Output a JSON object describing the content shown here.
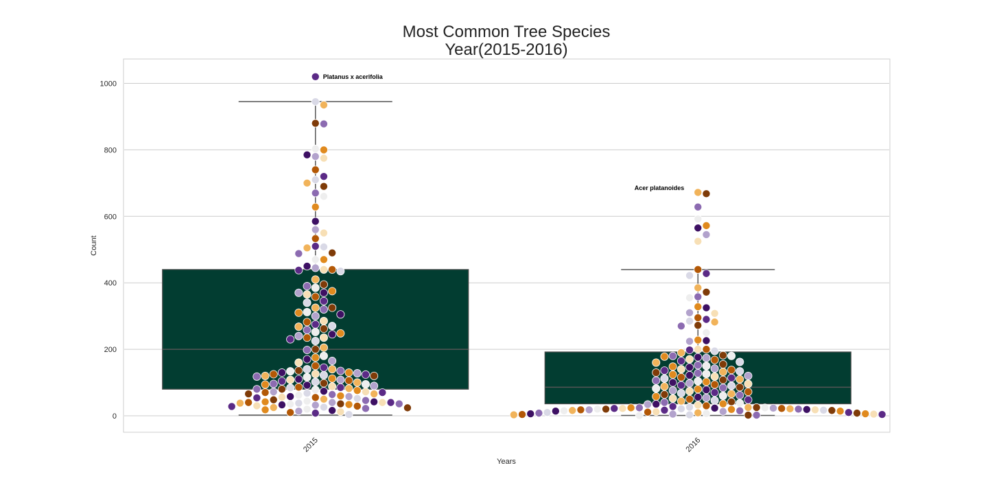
{
  "chart_data": {
    "type": "box_swarm",
    "title_line1": "Most Common Tree Species",
    "title_line2": "Year(2015-2016)",
    "xlabel": "Years",
    "ylabel": "Count",
    "ylim": [
      -50,
      1075
    ],
    "yticks": [
      0,
      200,
      400,
      600,
      800,
      1000
    ],
    "grid": true,
    "categories": [
      "2015",
      "2016"
    ],
    "box_color": "#023d31",
    "box_stats": [
      {
        "category": "2015",
        "q1": 80,
        "median": 200,
        "q3": 440,
        "whisker_low": 2,
        "whisker_high": 945
      },
      {
        "category": "2016",
        "q1": 36,
        "median": 86,
        "q3": 192,
        "whisker_low": 1,
        "whisker_high": 440
      }
    ],
    "point_colors": [
      "#5b2a86",
      "#8c6bb1",
      "#b2a2cc",
      "#d9d9e6",
      "#eeeeee",
      "#f7dfb5",
      "#f1b35a",
      "#e08a1e",
      "#b35806",
      "#7f3b08",
      "#3d1063"
    ],
    "series": [
      {
        "category": "2015",
        "values": [
          1020,
          945,
          935,
          880,
          878,
          803,
          800,
          785,
          780,
          775,
          740,
          720,
          710,
          700,
          690,
          670,
          660,
          628,
          585,
          560,
          550,
          533,
          510,
          508,
          505,
          490,
          488,
          470,
          470,
          450,
          445,
          440,
          440,
          438,
          435,
          410,
          395,
          390,
          385,
          375,
          370,
          370,
          365,
          358,
          345,
          340,
          325,
          325,
          320,
          312,
          310,
          305,
          300,
          285,
          282,
          275,
          270,
          268,
          262,
          258,
          252,
          248,
          245,
          240,
          235,
          235,
          230,
          225,
          205,
          200,
          198,
          180,
          175,
          170,
          165,
          160,
          150,
          145,
          140,
          140,
          136,
          135,
          134,
          130,
          130,
          128,
          126,
          125,
          124,
          122,
          120,
          120,
          118,
          116,
          112,
          110,
          108,
          108,
          106,
          104,
          102,
          100,
          98,
          96,
          95,
          94,
          92,
          90,
          88,
          86,
          85,
          84,
          82,
          80,
          80,
          78,
          76,
          74,
          72,
          72,
          70,
          70,
          68,
          66,
          66,
          64,
          62,
          60,
          58,
          58,
          56,
          55,
          54,
          52,
          50,
          48,
          46,
          44,
          42,
          42,
          40,
          40,
          40,
          40,
          38,
          38,
          36,
          36,
          35,
          34,
          33,
          32,
          30,
          29,
          28,
          26,
          25,
          24,
          22,
          20,
          18,
          16,
          14,
          12,
          10,
          8,
          4
        ]
      },
      {
        "category": "2016",
        "values": [
          672,
          668,
          628,
          592,
          572,
          565,
          545,
          525,
          440,
          428,
          422,
          385,
          372,
          358,
          355,
          328,
          325,
          310,
          308,
          295,
          290,
          285,
          282,
          272,
          270,
          250,
          228,
          226,
          224,
          200,
          200,
          198,
          195,
          190,
          182,
          180,
          180,
          178,
          176,
          174,
          170,
          168,
          165,
          162,
          160,
          155,
          152,
          150,
          148,
          146,
          142,
          140,
          138,
          136,
          134,
          132,
          130,
          128,
          126,
          124,
          122,
          120,
          118,
          116,
          114,
          112,
          110,
          108,
          106,
          104,
          102,
          100,
          98,
          96,
          94,
          92,
          90,
          88,
          86,
          84,
          82,
          80,
          78,
          76,
          74,
          72,
          70,
          68,
          66,
          64,
          62,
          60,
          58,
          56,
          54,
          52,
          50,
          48,
          46,
          44,
          42,
          40,
          38,
          36,
          35,
          34,
          32,
          30,
          28,
          26,
          25,
          25,
          24,
          24,
          24,
          23,
          23,
          22,
          22,
          22,
          21,
          21,
          20,
          20,
          20,
          19,
          19,
          18,
          18,
          18,
          17,
          17,
          16,
          16,
          15,
          15,
          14,
          14,
          13,
          12,
          11,
          10,
          10,
          9,
          8,
          8,
          7,
          6,
          6,
          5,
          5,
          4,
          4,
          3,
          3,
          2,
          2,
          1
        ]
      }
    ],
    "annotations": [
      {
        "category": "2015",
        "text": "Platanus x acerifolia",
        "y": 1020
      },
      {
        "category": "2016",
        "text": "Acer platanoides",
        "y": 685
      }
    ]
  }
}
